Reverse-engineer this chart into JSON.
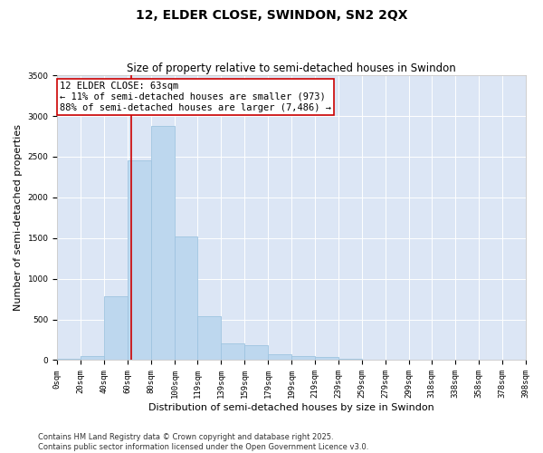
{
  "title": "12, ELDER CLOSE, SWINDON, SN2 2QX",
  "subtitle": "Size of property relative to semi-detached houses in Swindon",
  "xlabel": "Distribution of semi-detached houses by size in Swindon",
  "ylabel": "Number of semi-detached properties",
  "bar_color": "#bdd7ee",
  "bar_edge_color": "#9ec4e0",
  "bg_color": "#dce6f5",
  "grid_color": "#ffffff",
  "bin_labels": [
    "0sqm",
    "20sqm",
    "40sqm",
    "60sqm",
    "80sqm",
    "100sqm",
    "119sqm",
    "139sqm",
    "159sqm",
    "179sqm",
    "199sqm",
    "219sqm",
    "239sqm",
    "259sqm",
    "279sqm",
    "299sqm",
    "318sqm",
    "338sqm",
    "358sqm",
    "378sqm",
    "398sqm"
  ],
  "bin_edges": [
    0,
    20,
    40,
    60,
    80,
    100,
    119,
    139,
    159,
    179,
    199,
    219,
    239,
    259,
    279,
    299,
    318,
    338,
    358,
    378,
    398
  ],
  "values": [
    18,
    55,
    780,
    2450,
    2880,
    1520,
    535,
    205,
    185,
    75,
    50,
    40,
    20,
    5,
    5,
    5,
    0,
    0,
    0,
    0
  ],
  "ylim": [
    0,
    3500
  ],
  "yticks": [
    0,
    500,
    1000,
    1500,
    2000,
    2500,
    3000,
    3500
  ],
  "vline_x": 63,
  "vline_color": "#cc0000",
  "annotation_title": "12 ELDER CLOSE: 63sqm",
  "annotation_line1": "← 11% of semi-detached houses are smaller (973)",
  "annotation_line2": "88% of semi-detached houses are larger (7,486) →",
  "annotation_box_color": "#cc0000",
  "footer_line1": "Contains HM Land Registry data © Crown copyright and database right 2025.",
  "footer_line2": "Contains public sector information licensed under the Open Government Licence v3.0.",
  "title_fontsize": 10,
  "subtitle_fontsize": 8.5,
  "axis_label_fontsize": 8,
  "tick_fontsize": 6.5,
  "annotation_fontsize": 7.5,
  "footer_fontsize": 6
}
